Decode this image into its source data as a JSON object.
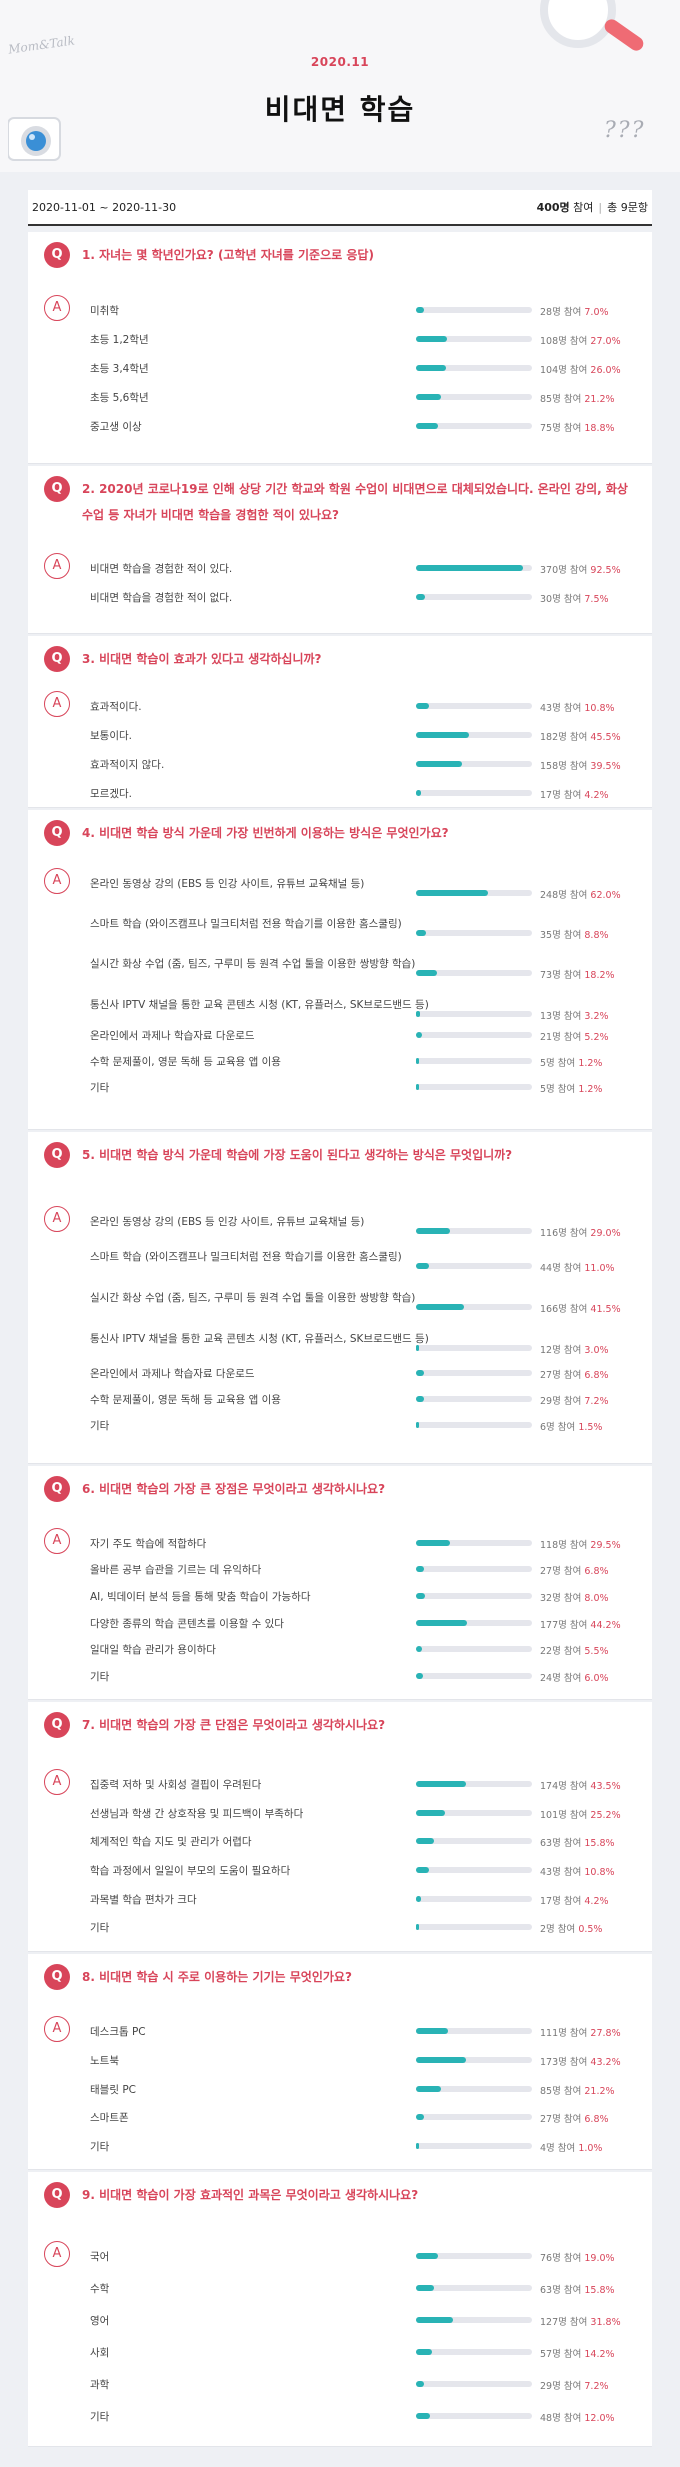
{
  "header": {
    "date": "2020.11",
    "title": "비대면 학습",
    "script": "Mom&Talk",
    "marks": "???"
  },
  "stats": {
    "period": "2020-11-01 ~ 2020-11-30",
    "participants": "400명",
    "participants_suffix": "참여",
    "questions": "총 9문항"
  },
  "labels": {
    "q": "Q",
    "a": "A",
    "suffix": "명 참여"
  },
  "colors": {
    "accent": "#d8455a",
    "bar": "#29b3b5",
    "track": "#e5e6ec"
  },
  "questions": [
    {
      "text": "1.  자녀는 몇 학년인가요? (고학년 자녀를 기준으로 응답)",
      "options": [
        {
          "label": "미취학",
          "count": "28",
          "percent": "7.0%",
          "value": 7.0
        },
        {
          "label": "초등 1,2학년",
          "count": "108",
          "percent": "27.0%",
          "value": 27.0
        },
        {
          "label": "초등 3,4학년",
          "count": "104",
          "percent": "26.0%",
          "value": 26.0
        },
        {
          "label": "초등 5,6학년",
          "count": "85",
          "percent": "21.2%",
          "value": 21.2
        },
        {
          "label": "중고생 이상",
          "count": "75",
          "percent": "18.8%",
          "value": 18.8
        }
      ]
    },
    {
      "text": "2.  2020년 코로나19로 인해 상당 기간 학교와 학원 수업이 비대면으로 대체되었습니다. 온라인 강의, 화상 수업 등 자녀가 비대면 학습을 경험한 적이 있나요?",
      "options": [
        {
          "label": "비대면 학습을 경험한 적이 있다.",
          "count": "370",
          "percent": "92.5%",
          "value": 92.5
        },
        {
          "label": "비대면 학습을 경험한 적이 없다.",
          "count": "30",
          "percent": "7.5%",
          "value": 7.5
        }
      ]
    },
    {
      "text": "3.  비대면 학습이 효과가 있다고 생각하십니까?",
      "options": [
        {
          "label": "효과적이다.",
          "count": "43",
          "percent": "10.8%",
          "value": 10.8
        },
        {
          "label": "보통이다.",
          "count": "182",
          "percent": "45.5%",
          "value": 45.5
        },
        {
          "label": "효과적이지 않다.",
          "count": "158",
          "percent": "39.5%",
          "value": 39.5
        },
        {
          "label": "모르겠다.",
          "count": "17",
          "percent": "4.2%",
          "value": 4.2
        }
      ]
    },
    {
      "text": "4.  비대면 학습 방식 가운데 가장 빈번하게 이용하는 방식은 무엇인가요?",
      "options": [
        {
          "label": "온라인 동영상 강의 (EBS 등 인강 사이트, 유튜브 교육채널 등)",
          "count": "248",
          "percent": "62.0%",
          "value": 62.0
        },
        {
          "label": "스마트 학습 (와이즈캠프나 밀크티처럼 전용 학습기를 이용한 홈스쿨링)",
          "count": "35",
          "percent": "8.8%",
          "value": 8.8
        },
        {
          "label": "실시간 화상 수업 (줌, 팀즈, 구루미 등 원격 수업 툴을 이용한 쌍방향 학습)",
          "count": "73",
          "percent": "18.2%",
          "value": 18.2
        },
        {
          "label": "통신사 IPTV 채널을 통한 교육 콘텐츠 시청 (KT, 유플러스, SK브로드밴드 등)",
          "count": "13",
          "percent": "3.2%",
          "value": 3.2
        },
        {
          "label": "온라인에서 과제나 학습자료 다운로드",
          "count": "21",
          "percent": "5.2%",
          "value": 5.2
        },
        {
          "label": "수학 문제풀이, 영문 독해 등 교육용 앱 이용",
          "count": "5",
          "percent": "1.2%",
          "value": 1.2
        },
        {
          "label": "기타",
          "count": "5",
          "percent": "1.2%",
          "value": 1.2
        }
      ]
    },
    {
      "text": "5.  비대면 학습 방식 가운데 학습에 가장 도움이 된다고 생각하는 방식은 무엇입니까?",
      "options": [
        {
          "label": "온라인 동영상 강의 (EBS 등 인강 사이트, 유튜브 교육채널 등)",
          "count": "116",
          "percent": "29.0%",
          "value": 29.0
        },
        {
          "label": "스마트 학습 (와이즈캠프나 밀크티처럼 전용 학습기를 이용한 홈스쿨링)",
          "count": "44",
          "percent": "11.0%",
          "value": 11.0
        },
        {
          "label": "실시간 화상 수업 (줌, 팀즈, 구루미 등 원격 수업 툴을 이용한 쌍방향 학습)",
          "count": "166",
          "percent": "41.5%",
          "value": 41.5
        },
        {
          "label": "통신사 IPTV 채널을 통한 교육 콘텐츠 시청 (KT, 유플러스, SK브로드밴드 등)",
          "count": "12",
          "percent": "3.0%",
          "value": 3.0
        },
        {
          "label": "온라인에서 과제나 학습자료 다운로드",
          "count": "27",
          "percent": "6.8%",
          "value": 6.8
        },
        {
          "label": "수학 문제풀이, 영문 독해 등 교육용 앱 이용",
          "count": "29",
          "percent": "7.2%",
          "value": 7.2
        },
        {
          "label": "기타",
          "count": "6",
          "percent": "1.5%",
          "value": 1.5
        }
      ]
    },
    {
      "text": "6.  비대면 학습의 가장 큰 장점은 무엇이라고 생각하시나요?",
      "options": [
        {
          "label": "자기 주도 학습에 적합하다",
          "count": "118",
          "percent": "29.5%",
          "value": 29.5
        },
        {
          "label": "올바른 공부 습관을 기르는 데 유익하다",
          "count": "27",
          "percent": "6.8%",
          "value": 6.8
        },
        {
          "label": "AI, 빅데이터 분석 등을 통해 맞춤 학습이 가능하다",
          "count": "32",
          "percent": "8.0%",
          "value": 8.0
        },
        {
          "label": "다양한 종류의 학습 콘텐츠를 이용할 수 있다",
          "count": "177",
          "percent": "44.2%",
          "value": 44.2
        },
        {
          "label": "일대일 학습 관리가 용이하다",
          "count": "22",
          "percent": "5.5%",
          "value": 5.5
        },
        {
          "label": "기타",
          "count": "24",
          "percent": "6.0%",
          "value": 6.0
        }
      ]
    },
    {
      "text": "7.  비대면 학습의 가장 큰 단점은 무엇이라고 생각하시나요?",
      "options": [
        {
          "label": "집중력 저하 및 사회성 결핍이 우려된다",
          "count": "174",
          "percent": "43.5%",
          "value": 43.5
        },
        {
          "label": "선생님과 학생 간 상호작용 및 피드백이 부족하다",
          "count": "101",
          "percent": "25.2%",
          "value": 25.2
        },
        {
          "label": "체계적인 학습 지도 및 관리가 어렵다",
          "count": "63",
          "percent": "15.8%",
          "value": 15.8
        },
        {
          "label": "학습 과정에서 일일이 부모의 도움이 필요하다",
          "count": "43",
          "percent": "10.8%",
          "value": 10.8
        },
        {
          "label": "과목별 학습 편차가 크다",
          "count": "17",
          "percent": "4.2%",
          "value": 4.2
        },
        {
          "label": "기타",
          "count": "2",
          "percent": "0.5%",
          "value": 0.5
        }
      ]
    },
    {
      "text": "8.  비대면 학습 시 주로 이용하는 기기는 무엇인가요?",
      "options": [
        {
          "label": "데스크톱 PC",
          "count": "111",
          "percent": "27.8%",
          "value": 27.8
        },
        {
          "label": "노트북",
          "count": "173",
          "percent": "43.2%",
          "value": 43.2
        },
        {
          "label": "태블릿 PC",
          "count": "85",
          "percent": "21.2%",
          "value": 21.2
        },
        {
          "label": "스마트폰",
          "count": "27",
          "percent": "6.8%",
          "value": 6.8
        },
        {
          "label": "기타",
          "count": "4",
          "percent": "1.0%",
          "value": 1.0
        }
      ]
    },
    {
      "text": "9.  비대면 학습이 가장 효과적인 과목은 무엇이라고 생각하시나요?",
      "options": [
        {
          "label": "국어",
          "count": "76",
          "percent": "19.0%",
          "value": 19.0
        },
        {
          "label": "수학",
          "count": "63",
          "percent": "15.8%",
          "value": 15.8
        },
        {
          "label": "영어",
          "count": "127",
          "percent": "31.8%",
          "value": 31.8
        },
        {
          "label": "사회",
          "count": "57",
          "percent": "14.2%",
          "value": 14.2
        },
        {
          "label": "과학",
          "count": "29",
          "percent": "7.2%",
          "value": 7.2
        },
        {
          "label": "기타",
          "count": "48",
          "percent": "12.0%",
          "value": 12.0
        }
      ]
    }
  ]
}
